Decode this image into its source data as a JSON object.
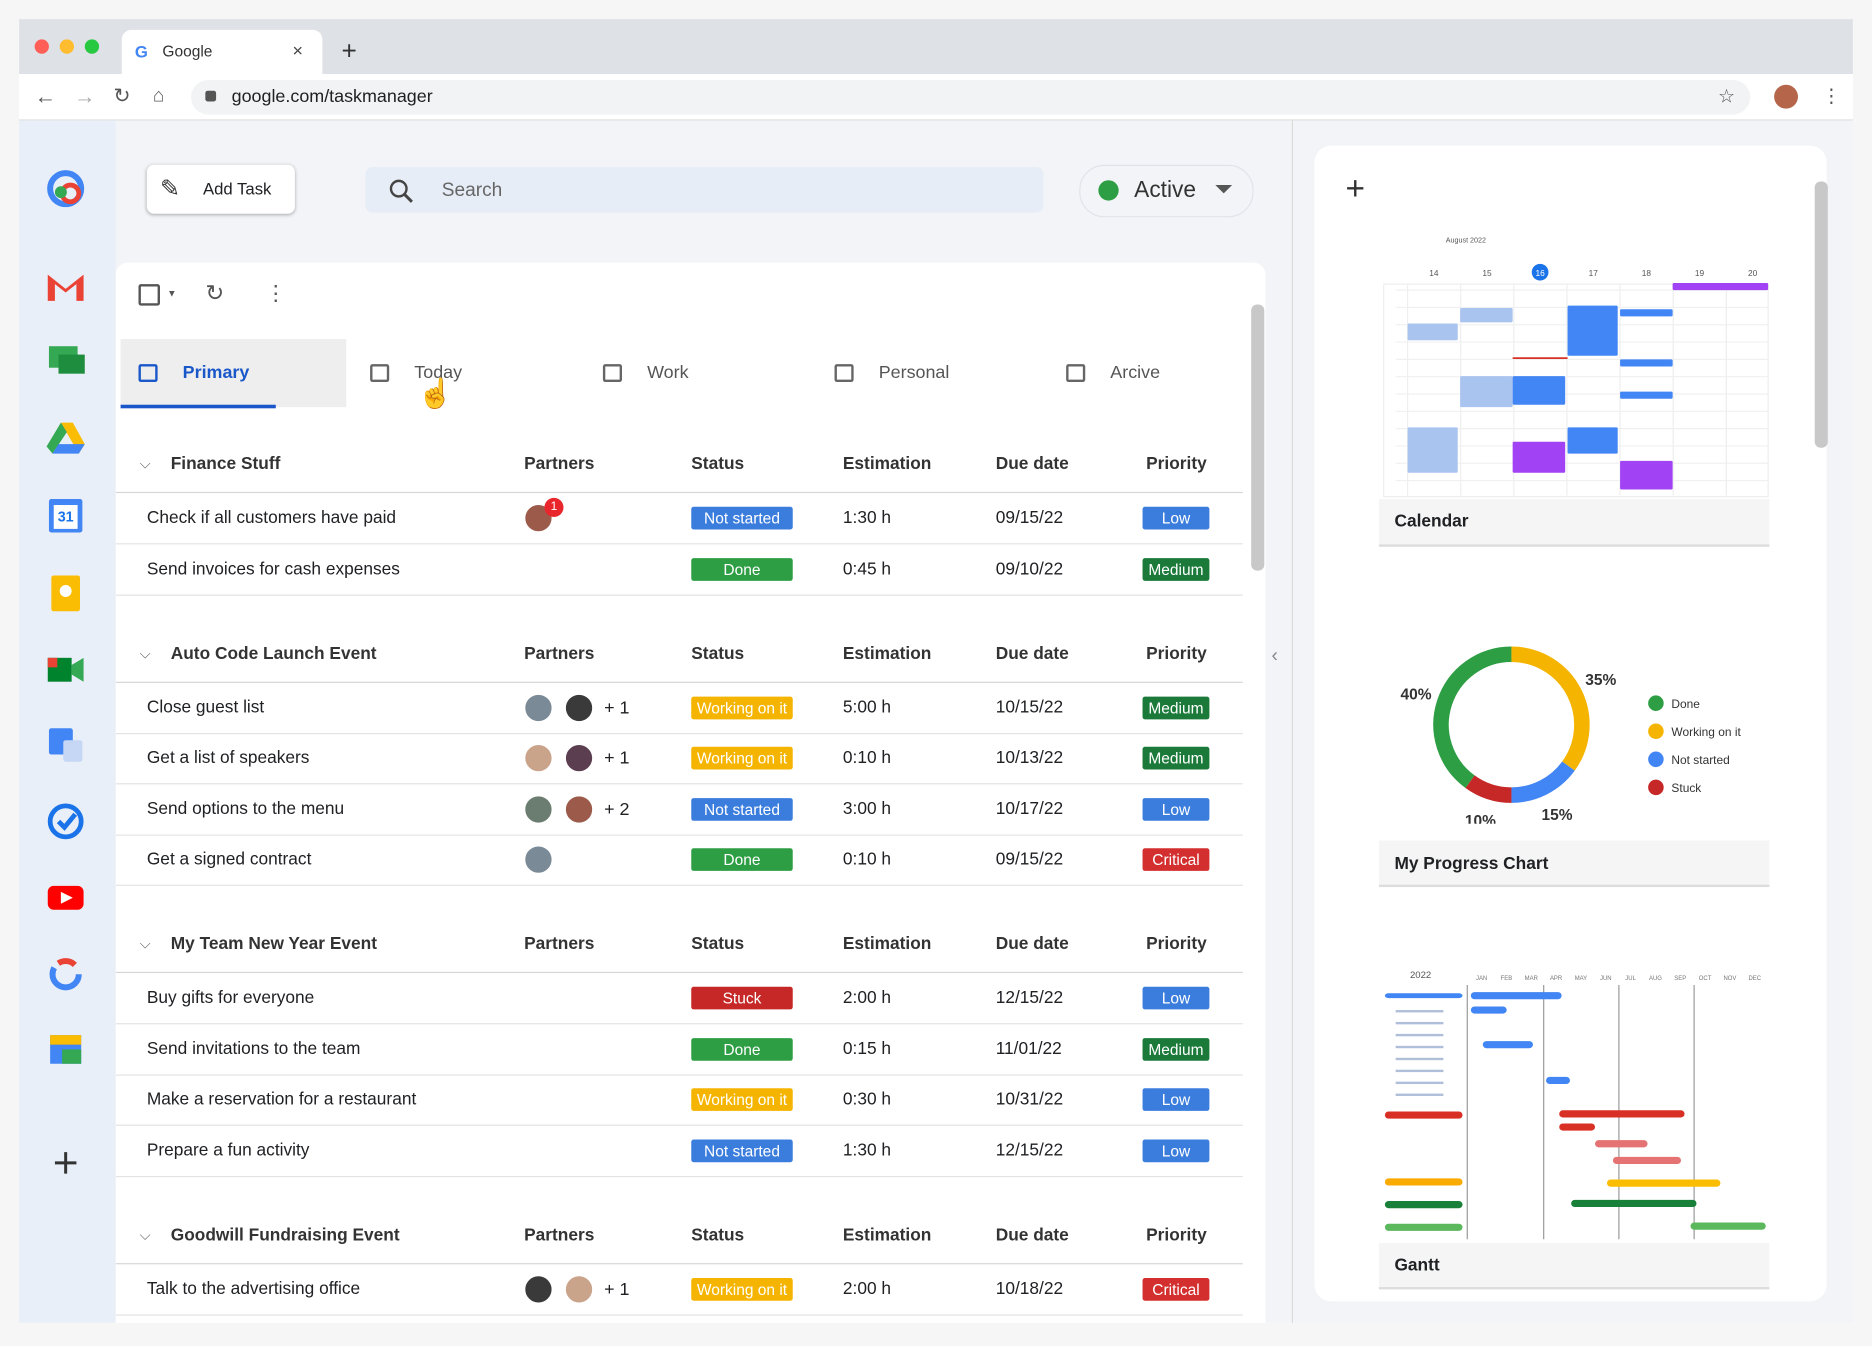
{
  "browser": {
    "tab_title": "Google",
    "url": "google.com/taskmanager"
  },
  "sidebar": {
    "calendar_icon": "31"
  },
  "toolbar": {
    "add_task": "Add Task",
    "search": "Search",
    "status": "Active"
  },
  "tabs": [
    "Primary",
    "Today",
    "Work",
    "Personal",
    "Arcive"
  ],
  "columns": [
    "Partners",
    "Status",
    "Estimation",
    "Due date",
    "Priority"
  ],
  "status_colors": {
    "Not started": "#3b7ddd",
    "Done": "#2e9e44",
    "Working on it": "#f5b400",
    "Stuck": "#c62828"
  },
  "priority_colors": {
    "Low": "#3b7ddd",
    "Medium": "#1b7a3a",
    "Critical": "#d32f2f"
  },
  "groups": [
    {
      "name": "Finance Stuff",
      "tasks": [
        {
          "task": "Check if all customers have paid",
          "avatars": 1,
          "badge": "1",
          "status": "Not started",
          "estimation": "1:30 h",
          "due": "09/15/22",
          "priority": "Low"
        },
        {
          "task": "Send invoices for cash expenses",
          "avatars": 0,
          "status": "Done",
          "estimation": "0:45 h",
          "due": "09/10/22",
          "priority": "Medium"
        }
      ]
    },
    {
      "name": "Auto Code Launch Event",
      "tasks": [
        {
          "task": "Close guest list",
          "avatars": 2,
          "more": "+ 1",
          "status": "Working on it",
          "estimation": "5:00 h",
          "due": "10/15/22",
          "priority": "Medium"
        },
        {
          "task": "Get a list of speakers",
          "avatars": 2,
          "more": "+ 1",
          "status": "Working on it",
          "estimation": "0:10 h",
          "due": "10/13/22",
          "priority": "Medium"
        },
        {
          "task": "Send options to the menu",
          "avatars": 2,
          "more": "+ 2",
          "status": "Not started",
          "estimation": "3:00 h",
          "due": "10/17/22",
          "priority": "Low"
        },
        {
          "task": "Get a signed contract",
          "avatars": 1,
          "status": "Done",
          "estimation": "0:10 h",
          "due": "09/15/22",
          "priority": "Critical"
        }
      ]
    },
    {
      "name": "My Team New Year Event",
      "tasks": [
        {
          "task": "Buy gifts for everyone",
          "avatars": 0,
          "status": "Stuck",
          "estimation": "2:00 h",
          "due": "12/15/22",
          "priority": "Low"
        },
        {
          "task": "Send invitations to the team",
          "avatars": 0,
          "status": "Done",
          "estimation": "0:15 h",
          "due": "11/01/22",
          "priority": "Medium"
        },
        {
          "task": "Make a reservation for a restaurant",
          "avatars": 0,
          "status": "Working on it",
          "estimation": "0:30 h",
          "due": "10/31/22",
          "priority": "Low"
        },
        {
          "task": "Prepare a fun activity",
          "avatars": 0,
          "status": "Not started",
          "estimation": "1:30 h",
          "due": "12/15/22",
          "priority": "Low"
        }
      ]
    },
    {
      "name": "Goodwill Fundraising Event",
      "tasks": [
        {
          "task": "Talk to the advertising office",
          "avatars": 2,
          "more": "+ 1",
          "status": "Working on it",
          "estimation": "2:00 h",
          "due": "10/18/22",
          "priority": "Critical"
        }
      ]
    }
  ],
  "calendar": {
    "title": "Calendar",
    "month": "August 2022",
    "days": [
      "14",
      "15",
      "16",
      "17",
      "18",
      "19",
      "20"
    ]
  },
  "progress": {
    "title": "My Progress Chart",
    "chart_data": {
      "type": "pie",
      "categories": [
        "Done",
        "Working on it",
        "Not started",
        "Stuck"
      ],
      "values": [
        40,
        35,
        15,
        10
      ],
      "value_labels": [
        "40%",
        "35%",
        "15%",
        "10%"
      ],
      "colors": [
        "#2e9e44",
        "#f5b400",
        "#4285f4",
        "#c62828"
      ]
    }
  },
  "gantt": {
    "title": "Gantt",
    "year": "2022",
    "months": [
      "JAN",
      "FEB",
      "MAR",
      "APR",
      "MAY",
      "JUN",
      "JUL",
      "AUG",
      "SEP",
      "OCT",
      "NOV",
      "DEC"
    ]
  }
}
